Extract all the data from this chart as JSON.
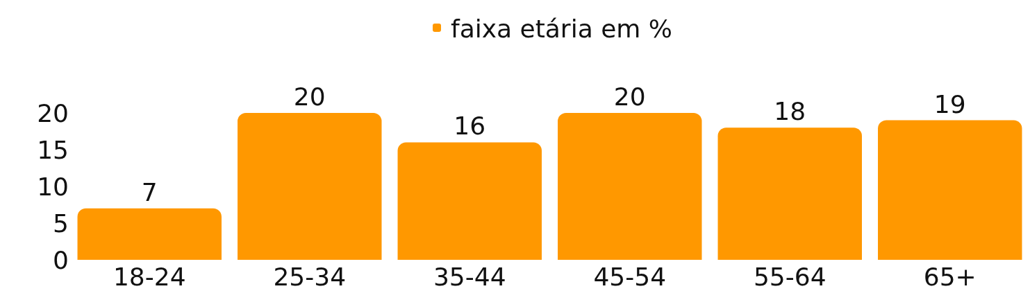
{
  "chart_data": {
    "type": "bar",
    "categories": [
      "18-24",
      "25-34",
      "35-44",
      "45-54",
      "55-64",
      "65+"
    ],
    "series": [
      {
        "name": "faixa etária em %",
        "color": "#ff9800",
        "values": [
          7,
          20,
          16,
          20,
          18,
          19
        ]
      }
    ],
    "ylim": [
      0,
      20
    ],
    "yticks": [
      0,
      5,
      10,
      15,
      20
    ],
    "data_labels": true,
    "legend": "top"
  }
}
